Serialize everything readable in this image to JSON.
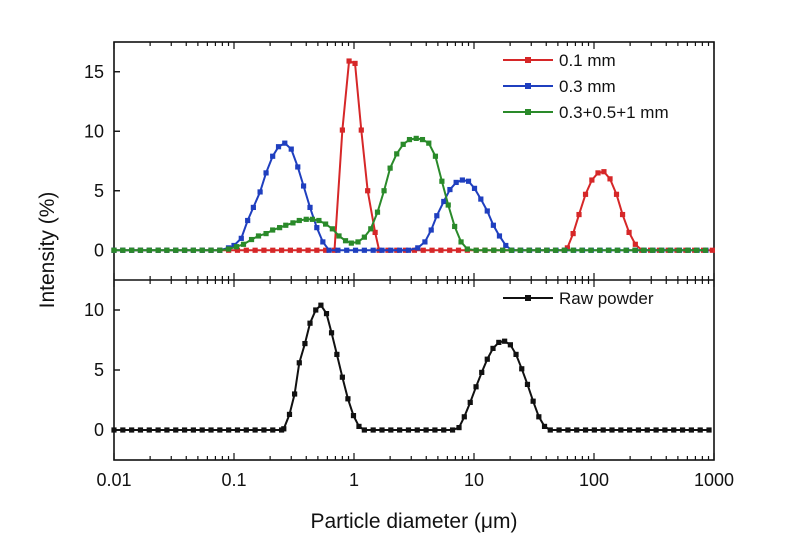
{
  "chart_data": [
    {
      "type": "line",
      "panel": "top",
      "xscale": "log",
      "xlim": [
        0.01,
        1000
      ],
      "ylim": [
        -2.5,
        17.5
      ],
      "yticks": [
        0,
        5,
        10,
        15
      ],
      "legend_position": "top-right",
      "grid": false,
      "series": [
        {
          "name": "0.1 mm",
          "color": "#d62728",
          "peaks": [
            {
              "points": [
                [
                  0.8,
                  10.1
                ],
                [
                  0.91,
                  15.9
                ],
                [
                  1.02,
                  15.7
                ],
                [
                  1.15,
                  10.1
                ],
                [
                  1.3,
                  5.0
                ],
                [
                  1.5,
                  1.5
                ],
                [
                  1.62,
                  0.0
                ]
              ]
            },
            {
              "points": [
                [
                  60,
                  0.2
                ],
                [
                  67,
                  1.4
                ],
                [
                  75,
                  3.0
                ],
                [
                  85,
                  4.7
                ],
                [
                  96,
                  5.9
                ],
                [
                  108,
                  6.5
                ],
                [
                  121,
                  6.6
                ],
                [
                  136,
                  6.0
                ],
                [
                  154,
                  4.7
                ],
                [
                  173,
                  3.0
                ],
                [
                  196,
                  1.5
                ],
                [
                  221,
                  0.5
                ],
                [
                  250,
                  0.0
                ]
              ]
            }
          ]
        },
        {
          "name": "0.3 mm",
          "color": "#1f3fbf",
          "peaks": [
            {
              "points": [
                [
                  0.09,
                  0.2
                ],
                [
                  0.1,
                  0.4
                ],
                [
                  0.115,
                  1.0
                ],
                [
                  0.13,
                  2.5
                ],
                [
                  0.145,
                  3.6
                ],
                [
                  0.165,
                  4.9
                ],
                [
                  0.185,
                  6.5
                ],
                [
                  0.21,
                  7.9
                ],
                [
                  0.235,
                  8.7
                ],
                [
                  0.265,
                  9.0
                ],
                [
                  0.3,
                  8.5
                ],
                [
                  0.34,
                  7.0
                ],
                [
                  0.38,
                  5.4
                ],
                [
                  0.43,
                  3.6
                ],
                [
                  0.49,
                  1.9
                ],
                [
                  0.55,
                  0.7
                ],
                [
                  0.62,
                  0.0
                ]
              ]
            },
            {
              "points": [
                [
                  3.4,
                  0.2
                ],
                [
                  3.9,
                  0.7
                ],
                [
                  4.4,
                  1.7
                ],
                [
                  4.9,
                  2.9
                ],
                [
                  5.6,
                  4.1
                ],
                [
                  6.3,
                  5.1
                ],
                [
                  7.1,
                  5.7
                ],
                [
                  8.0,
                  5.9
                ],
                [
                  9.0,
                  5.8
                ],
                [
                  10.1,
                  5.2
                ],
                [
                  11.4,
                  4.3
                ],
                [
                  12.9,
                  3.3
                ],
                [
                  14.5,
                  2.1
                ],
                [
                  16.3,
                  1.2
                ],
                [
                  18.4,
                  0.4
                ],
                [
                  20.7,
                  0.0
                ]
              ]
            }
          ]
        },
        {
          "name": "0.3+0.5+1 mm",
          "color": "#2a8a2a",
          "peaks": [
            {
              "points": [
                [
                  0.09,
                  0.1
                ],
                [
                  0.105,
                  0.3
                ],
                [
                  0.12,
                  0.5
                ],
                [
                  0.14,
                  0.9
                ],
                [
                  0.16,
                  1.2
                ],
                [
                  0.185,
                  1.4
                ],
                [
                  0.21,
                  1.7
                ],
                [
                  0.24,
                  1.9
                ],
                [
                  0.27,
                  2.1
                ],
                [
                  0.31,
                  2.3
                ],
                [
                  0.35,
                  2.5
                ],
                [
                  0.4,
                  2.6
                ],
                [
                  0.45,
                  2.6
                ],
                [
                  0.51,
                  2.5
                ],
                [
                  0.58,
                  2.2
                ],
                [
                  0.66,
                  1.8
                ],
                [
                  0.75,
                  1.2
                ],
                [
                  0.85,
                  0.8
                ],
                [
                  0.95,
                  0.6
                ],
                [
                  1.08,
                  0.7
                ],
                [
                  1.22,
                  1.1
                ],
                [
                  1.38,
                  1.8
                ],
                [
                  1.57,
                  3.2
                ],
                [
                  1.78,
                  5.0
                ],
                [
                  2.0,
                  6.9
                ],
                [
                  2.27,
                  8.1
                ],
                [
                  2.57,
                  8.9
                ],
                [
                  2.9,
                  9.3
                ],
                [
                  3.3,
                  9.4
                ],
                [
                  3.72,
                  9.3
                ],
                [
                  4.2,
                  9.0
                ],
                [
                  4.77,
                  7.9
                ],
                [
                  5.4,
                  5.8
                ],
                [
                  6.1,
                  3.8
                ],
                [
                  6.9,
                  2.0
                ],
                [
                  7.8,
                  0.7
                ],
                [
                  8.8,
                  0.1
                ]
              ]
            }
          ]
        }
      ]
    },
    {
      "type": "line",
      "panel": "bottom",
      "xscale": "log",
      "xlim": [
        0.01,
        1000
      ],
      "ylim": [
        -2.5,
        12.5
      ],
      "yticks": [
        0,
        5,
        10
      ],
      "legend_position": "top-right",
      "grid": false,
      "xlabel": "Particle diameter (μm)",
      "xtick_labels": [
        "0.01",
        "0.1",
        "1",
        "10",
        "100",
        "1000"
      ],
      "series": [
        {
          "name": "Raw powder",
          "color": "#111111",
          "peaks": [
            {
              "points": [
                [
                  0.26,
                  0.1
                ],
                [
                  0.29,
                  1.3
                ],
                [
                  0.32,
                  3.0
                ],
                [
                  0.35,
                  5.6
                ],
                [
                  0.39,
                  7.2
                ],
                [
                  0.43,
                  8.9
                ],
                [
                  0.48,
                  10.0
                ],
                [
                  0.53,
                  10.4
                ],
                [
                  0.59,
                  9.7
                ],
                [
                  0.65,
                  8.1
                ],
                [
                  0.72,
                  6.3
                ],
                [
                  0.8,
                  4.4
                ],
                [
                  0.89,
                  2.6
                ],
                [
                  0.99,
                  1.2
                ],
                [
                  1.1,
                  0.3
                ],
                [
                  1.22,
                  0.0
                ]
              ]
            },
            {
              "points": [
                [
                  7.5,
                  0.2
                ],
                [
                  8.3,
                  1.1
                ],
                [
                  9.3,
                  2.3
                ],
                [
                  10.4,
                  3.6
                ],
                [
                  11.6,
                  4.8
                ],
                [
                  12.9,
                  5.9
                ],
                [
                  14.4,
                  6.8
                ],
                [
                  16.1,
                  7.3
                ],
                [
                  18.0,
                  7.4
                ],
                [
                  20.1,
                  7.1
                ],
                [
                  22.4,
                  6.3
                ],
                [
                  25.0,
                  5.1
                ],
                [
                  27.9,
                  3.8
                ],
                [
                  31.1,
                  2.4
                ],
                [
                  34.7,
                  1.1
                ],
                [
                  38.7,
                  0.3
                ],
                [
                  43.2,
                  0.0
                ]
              ]
            }
          ]
        }
      ]
    }
  ],
  "shared": {
    "ylabel": "Intensity (%)",
    "xlabel": "Particle diameter (μm)"
  }
}
